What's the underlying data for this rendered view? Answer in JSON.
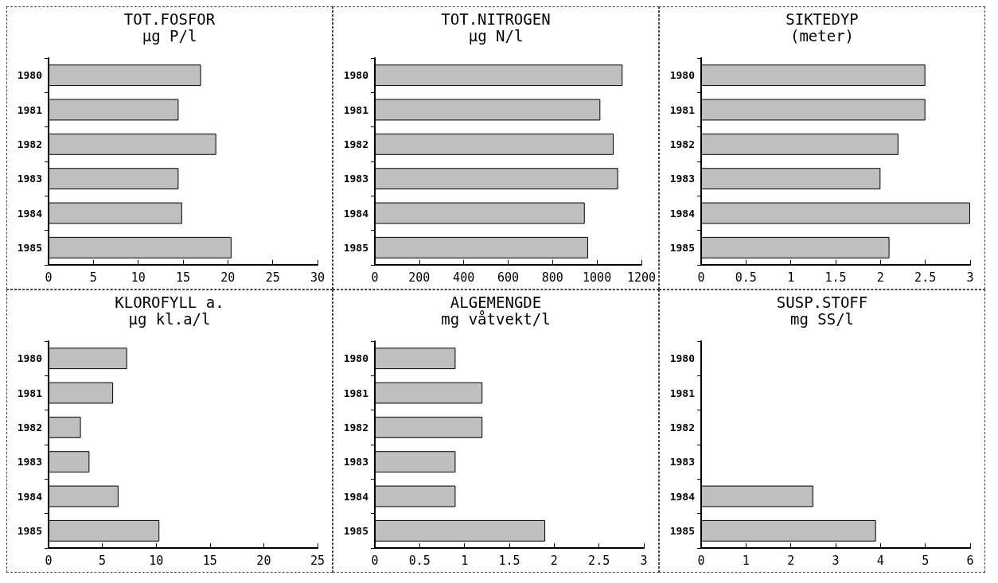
{
  "chart_data": [
    {
      "type": "bar",
      "orientation": "horizontal",
      "title": "TOT.FOSFOR",
      "subtitle": "µg P/l",
      "categories": [
        "1980",
        "1981",
        "1982",
        "1983",
        "1984",
        "1985"
      ],
      "values": [
        17.0,
        14.5,
        18.7,
        14.5,
        14.9,
        20.4
      ],
      "color": "#bfbfbf",
      "xlim": [
        0,
        30
      ],
      "xticks": [
        0,
        5,
        10,
        15,
        20,
        25,
        30
      ]
    },
    {
      "type": "bar",
      "orientation": "horizontal",
      "title": "TOT.NITROGEN",
      "subtitle": "µg N/l",
      "categories": [
        "1980",
        "1981",
        "1982",
        "1983",
        "1984",
        "1985"
      ],
      "values": [
        1115,
        1015,
        1075,
        1095,
        945,
        960
      ],
      "color": "#bfbfbf",
      "xlim": [
        0,
        1200
      ],
      "xticks": [
        0,
        200,
        400,
        600,
        800,
        1000,
        1200
      ]
    },
    {
      "type": "bar",
      "orientation": "horizontal",
      "title": "SIKTEDYP",
      "subtitle": "(meter)",
      "categories": [
        "1980",
        "1981",
        "1982",
        "1983",
        "1984",
        "1985"
      ],
      "values": [
        2.5,
        2.5,
        2.2,
        2.0,
        3.0,
        2.1
      ],
      "color": "#bfbfbf",
      "xlim": [
        0,
        3
      ],
      "xticks": [
        0,
        0.5,
        1,
        1.5,
        2,
        2.5,
        3
      ]
    },
    {
      "type": "bar",
      "orientation": "horizontal",
      "title": "KLOROFYLL a.",
      "subtitle": "µg kl.a/l",
      "categories": [
        "1980",
        "1981",
        "1982",
        "1983",
        "1984",
        "1985"
      ],
      "values": [
        7.3,
        6.0,
        3.0,
        3.8,
        6.5,
        10.3
      ],
      "color": "#bfbfbf",
      "xlim": [
        0,
        25
      ],
      "xticks": [
        0,
        5,
        10,
        15,
        20,
        25
      ]
    },
    {
      "type": "bar",
      "orientation": "horizontal",
      "title": "ALGEMENGDE",
      "subtitle": "mg våtvekt/l",
      "categories": [
        "1980",
        "1981",
        "1982",
        "1983",
        "1984",
        "1985"
      ],
      "values": [
        0.9,
        1.2,
        1.2,
        0.9,
        0.9,
        1.9
      ],
      "color": "#bfbfbf",
      "xlim": [
        0,
        3
      ],
      "xticks": [
        0,
        0.5,
        1,
        1.5,
        2,
        2.5,
        3
      ]
    },
    {
      "type": "bar",
      "orientation": "horizontal",
      "title": "SUSP.STOFF",
      "subtitle": "mg SS/l",
      "categories": [
        "1980",
        "1981",
        "1982",
        "1983",
        "1984",
        "1985"
      ],
      "values": [
        null,
        null,
        null,
        null,
        2.5,
        3.9
      ],
      "color": "#bfbfbf",
      "xlim": [
        0,
        6
      ],
      "xticks": [
        0,
        1,
        2,
        3,
        4,
        5,
        6
      ]
    }
  ]
}
